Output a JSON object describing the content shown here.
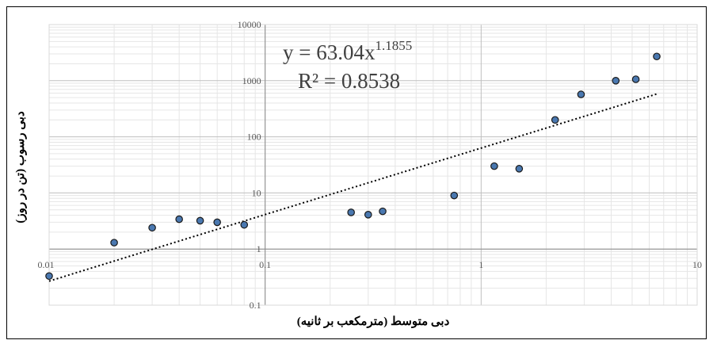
{
  "chart_data": {
    "type": "scatter",
    "xlabel": "دبی متوسط (مترمکعب بر ثانیه)",
    "ylabel": "دبی رسوب (تن در روز)",
    "x_scale": "log",
    "y_scale": "log",
    "xlim": [
      0.01,
      10
    ],
    "ylim": [
      0.1,
      10000
    ],
    "x_ticks": [
      "0.01",
      "0.1",
      "1",
      "10"
    ],
    "y_ticks": [
      "0.1",
      "1",
      "10",
      "100",
      "1000",
      "10000"
    ],
    "grid": true,
    "points": [
      {
        "x": 0.01,
        "y": 0.33
      },
      {
        "x": 0.02,
        "y": 1.3
      },
      {
        "x": 0.03,
        "y": 2.4
      },
      {
        "x": 0.04,
        "y": 3.4
      },
      {
        "x": 0.05,
        "y": 3.2
      },
      {
        "x": 0.06,
        "y": 3.0
      },
      {
        "x": 0.08,
        "y": 2.7
      },
      {
        "x": 0.25,
        "y": 4.5
      },
      {
        "x": 0.3,
        "y": 4.1
      },
      {
        "x": 0.35,
        "y": 4.7
      },
      {
        "x": 0.75,
        "y": 9.0
      },
      {
        "x": 1.15,
        "y": 30
      },
      {
        "x": 1.5,
        "y": 27
      },
      {
        "x": 2.2,
        "y": 200
      },
      {
        "x": 2.9,
        "y": 570
      },
      {
        "x": 4.2,
        "y": 1000
      },
      {
        "x": 5.2,
        "y": 1060
      },
      {
        "x": 6.5,
        "y": 2700
      }
    ],
    "trendline": {
      "type": "power",
      "coefficient": 63.04,
      "exponent": 1.1855,
      "x_range": [
        0.01,
        6.5
      ],
      "equation_base": "y = 63.04x",
      "equation_exponent": "1.1855",
      "r_squared": "R² = 0.8538"
    },
    "colors": {
      "marker_fill": "#4a78b0",
      "marker_stroke": "#1a1a1a",
      "trendline": "#000000",
      "grid_major": "#bfbfbf",
      "grid_minor": "#e6e6e6"
    }
  }
}
